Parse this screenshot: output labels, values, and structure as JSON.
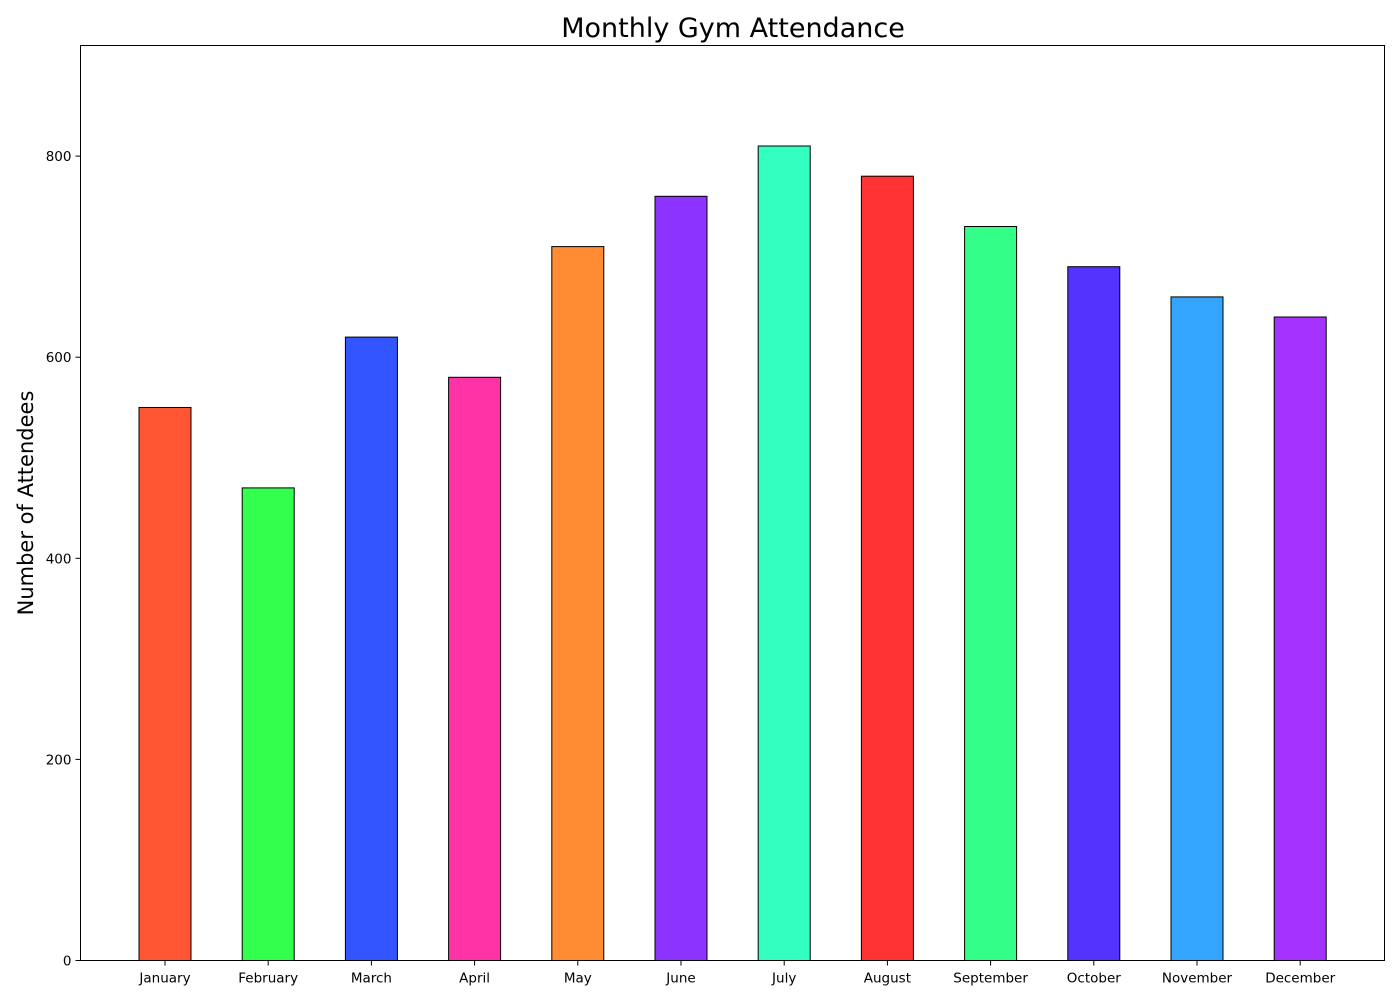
{
  "chart_data": {
    "type": "bar",
    "title": "Monthly Gym Attendance",
    "xlabel": "",
    "ylabel": "Number of Attendees",
    "categories": [
      "January",
      "February",
      "March",
      "April",
      "May",
      "June",
      "July",
      "August",
      "September",
      "October",
      "November",
      "December"
    ],
    "values": [
      550,
      470,
      620,
      580,
      710,
      760,
      810,
      780,
      730,
      690,
      660,
      640
    ],
    "colors": [
      "#ff5533",
      "#33ff4d",
      "#3355ff",
      "#ff33a5",
      "#ff8c33",
      "#8c33ff",
      "#33ffc0",
      "#ff3333",
      "#33ff88",
      "#5533ff",
      "#33a5ff",
      "#a533ff"
    ],
    "bar_edge_color": "#000000",
    "ylim": [
      0,
      910
    ],
    "yticks": [
      0,
      200,
      400,
      600,
      800
    ],
    "grid": false,
    "legend": "none"
  }
}
